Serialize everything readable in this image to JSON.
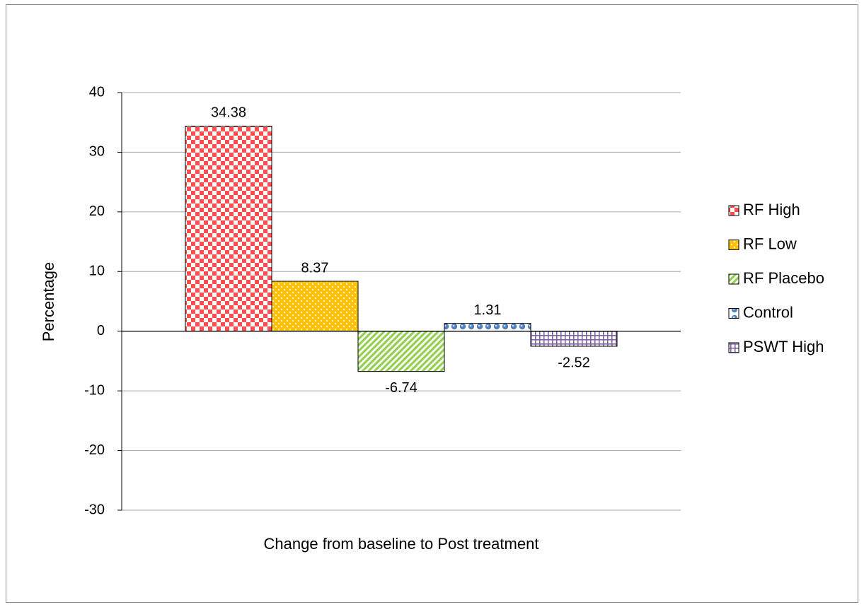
{
  "chart_data": {
    "type": "bar",
    "title": "",
    "xlabel": "Change from baseline to Post treatment",
    "ylabel": "Percentage",
    "ylim": [
      -30,
      40
    ],
    "yticks": [
      "40",
      "30",
      "20",
      "10",
      "0",
      "-10",
      "-20",
      "-30"
    ],
    "ytick_values": [
      40,
      30,
      20,
      10,
      0,
      -10,
      -20,
      -30
    ],
    "grid": true,
    "legend_position": "right",
    "categories": [
      "Change from baseline to Post treatment"
    ],
    "series": [
      {
        "name": "RF High",
        "values": [
          34.38
        ],
        "label": "34.38",
        "color": "#ff4d4d",
        "pattern": "checker"
      },
      {
        "name": "RF Low",
        "values": [
          8.37
        ],
        "label": "8.37",
        "color": "#ffc000",
        "pattern": "dots"
      },
      {
        "name": "RF Placebo",
        "values": [
          -6.74
        ],
        "label": "-6.74",
        "color": "#92d050",
        "pattern": "diagonal"
      },
      {
        "name": "Control",
        "values": [
          1.31
        ],
        "label": "1.31",
        "color": "#4f81bd",
        "pattern": "spheres"
      },
      {
        "name": "PSWT High",
        "values": [
          -2.52
        ],
        "label": "-2.52",
        "color": "#8064a2",
        "pattern": "grid"
      }
    ]
  }
}
